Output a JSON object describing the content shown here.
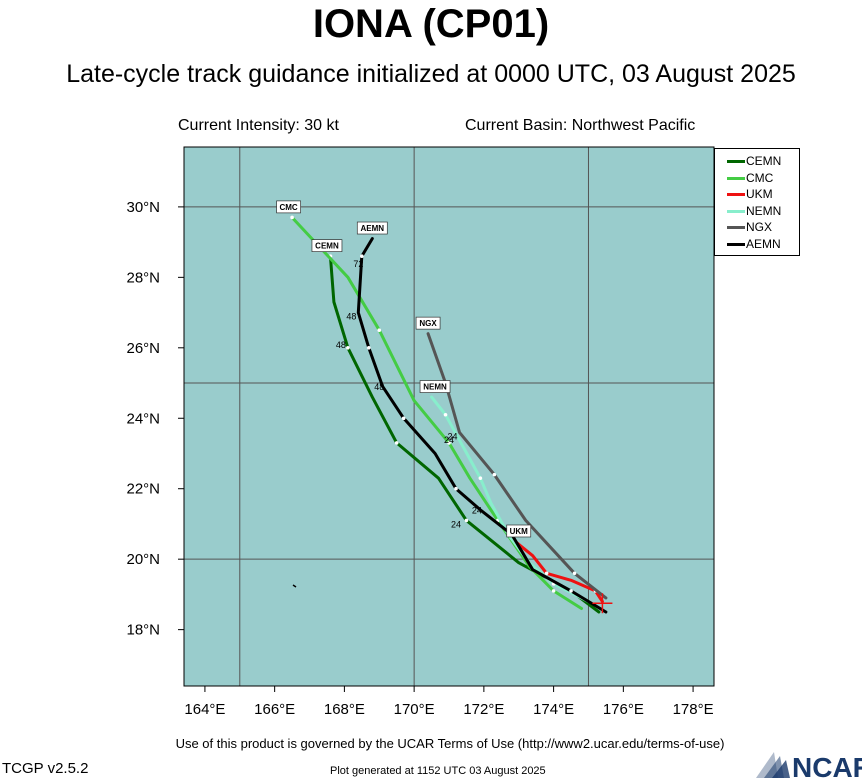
{
  "header": {
    "title": "IONA (CP01)",
    "subtitle": "Late-cycle track guidance initialized at 0000 UTC, 03 August 2025",
    "intensity": "Current Intensity: 30 kt",
    "basin": "Current Basin: Northwest Pacific"
  },
  "footer": {
    "terms": "Use of this product is governed by the UCAR Terms of Use (http://www2.ucar.edu/terms-of-use)",
    "version": "TCGP v2.5.2",
    "generated": "Plot generated at 1152 UTC   03 August 2025",
    "logo_text": "NCAR"
  },
  "colors": {
    "ocean": "#99cccc",
    "grid": "#555555",
    "CEMN": "#006600",
    "CMC": "#44cc44",
    "UKM": "#ee1111",
    "NEMN": "#88eecc",
    "NGX": "#555555",
    "AEMN": "#000000"
  },
  "chart_data": {
    "type": "line",
    "x_axis": {
      "ticks": [
        "164°E",
        "166°E",
        "168°E",
        "170°E",
        "172°E",
        "174°E",
        "176°E",
        "178°E"
      ],
      "values": [
        164,
        166,
        168,
        170,
        172,
        174,
        176,
        178
      ],
      "range": [
        163.4,
        178.6
      ]
    },
    "y_axis": {
      "ticks": [
        "18°N",
        "20°N",
        "22°N",
        "24°N",
        "26°N",
        "28°N",
        "30°N"
      ],
      "values": [
        18,
        20,
        22,
        24,
        26,
        28,
        30
      ],
      "range": [
        16.4,
        31.7
      ]
    },
    "grid_lon": [
      165,
      170,
      175
    ],
    "grid_lat": [
      20,
      25,
      30
    ],
    "legend": {
      "position": "top-right",
      "entries": [
        "CEMN",
        "CMC",
        "UKM",
        "NEMN",
        "NGX",
        "AEMN"
      ]
    },
    "series": [
      {
        "name": "CEMN",
        "points": [
          [
            175.3,
            18.5
          ],
          [
            174.5,
            19.1
          ],
          [
            173.0,
            19.9
          ],
          [
            171.5,
            21.1
          ],
          [
            170.7,
            22.3
          ],
          [
            169.5,
            23.3
          ],
          [
            168.8,
            24.6
          ],
          [
            168.1,
            26.0
          ],
          [
            167.7,
            27.3
          ],
          [
            167.6,
            28.6
          ]
        ],
        "hour_labels": [
          {
            "text": "24",
            "lon": 171.2,
            "lat": 20.9
          },
          {
            "text": "48",
            "lon": 167.9,
            "lat": 26.0
          }
        ],
        "end_tag": {
          "text": "CEMN",
          "lon": 167.5,
          "lat": 28.9
        }
      },
      {
        "name": "CMC",
        "points": [
          [
            174.8,
            18.6
          ],
          [
            174.0,
            19.1
          ],
          [
            173.3,
            19.8
          ],
          [
            172.4,
            21.1
          ],
          [
            171.6,
            22.3
          ],
          [
            171.0,
            23.3
          ],
          [
            170.0,
            24.5
          ],
          [
            169.0,
            26.5
          ],
          [
            168.1,
            28.0
          ],
          [
            166.5,
            29.7
          ]
        ],
        "hour_labels": [],
        "end_tag": {
          "text": "CMC",
          "lon": 166.4,
          "lat": 30.0
        }
      },
      {
        "name": "UKM",
        "points": [
          [
            175.4,
            18.8
          ],
          [
            175.2,
            19.1
          ],
          [
            174.5,
            19.4
          ],
          [
            173.8,
            19.6
          ],
          [
            173.4,
            20.1
          ],
          [
            172.9,
            20.5
          ]
        ],
        "hour_labels": [],
        "end_tag": {
          "text": "UKM",
          "lon": 173.0,
          "lat": 20.8
        }
      },
      {
        "name": "NEMN",
        "points": [
          [
            175.0,
            18.8
          ],
          [
            174.0,
            19.3
          ],
          [
            173.3,
            19.9
          ],
          [
            172.7,
            20.7
          ],
          [
            172.2,
            21.6
          ],
          [
            171.9,
            22.3
          ],
          [
            171.4,
            23.2
          ],
          [
            170.9,
            24.1
          ],
          [
            170.5,
            24.6
          ]
        ],
        "hour_labels": [
          {
            "text": "24",
            "lon": 171.0,
            "lat": 23.3
          }
        ],
        "end_tag": {
          "text": "NEMN",
          "lon": 170.6,
          "lat": 24.9
        }
      },
      {
        "name": "NGX",
        "points": [
          [
            175.5,
            18.9
          ],
          [
            174.6,
            19.6
          ],
          [
            173.2,
            21.1
          ],
          [
            172.3,
            22.4
          ],
          [
            171.3,
            23.6
          ],
          [
            170.9,
            25.0
          ],
          [
            170.4,
            26.4
          ]
        ],
        "hour_labels": [
          {
            "text": "24",
            "lon": 171.1,
            "lat": 23.4
          }
        ],
        "end_tag": {
          "text": "NGX",
          "lon": 170.4,
          "lat": 26.7
        }
      },
      {
        "name": "AEMN",
        "points": [
          [
            175.5,
            18.5
          ],
          [
            174.5,
            19.1
          ],
          [
            173.4,
            19.7
          ],
          [
            172.8,
            20.7
          ],
          [
            171.9,
            21.4
          ],
          [
            171.2,
            22.0
          ],
          [
            170.6,
            23.0
          ],
          [
            169.7,
            24.0
          ],
          [
            169.1,
            24.9
          ],
          [
            168.7,
            26.0
          ],
          [
            168.4,
            27.0
          ],
          [
            168.5,
            28.6
          ],
          [
            168.8,
            29.1
          ]
        ],
        "hour_labels": [
          {
            "text": "24",
            "lon": 171.8,
            "lat": 21.3
          },
          {
            "text": "48",
            "lon": 169.0,
            "lat": 24.8
          },
          {
            "text": "48",
            "lon": 168.2,
            "lat": 26.8
          },
          {
            "text": "72",
            "lon": 168.4,
            "lat": 28.3
          }
        ],
        "end_tag": {
          "text": "AEMN",
          "lon": 168.8,
          "lat": 29.4
        }
      }
    ]
  }
}
